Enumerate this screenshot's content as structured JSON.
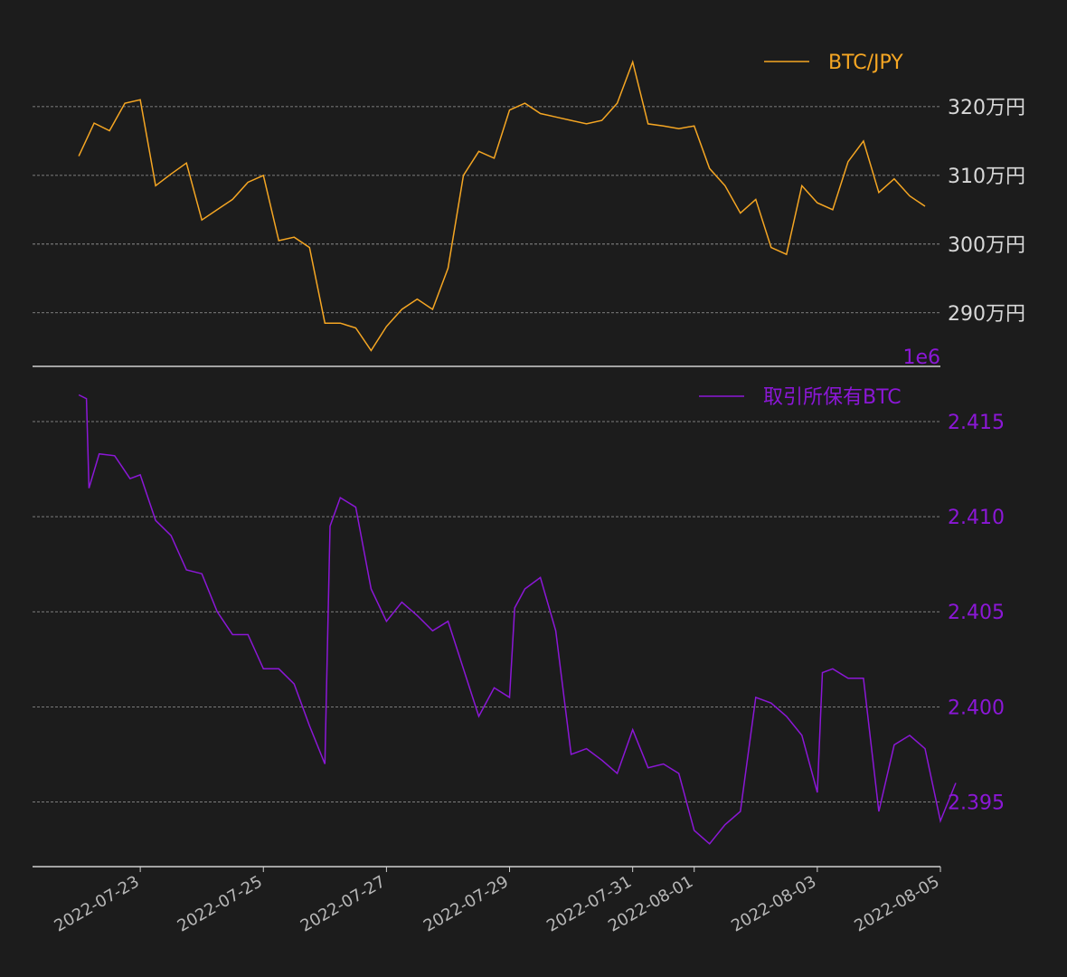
{
  "colors": {
    "background": "#1c1c1c",
    "price": "#f5a623",
    "holdings": "#8b17d6",
    "grid": "#9a9a9a",
    "axis": "#d0d0d0",
    "xtick": "#b8b8b8",
    "price_tick": "#d8d8d8"
  },
  "chart_data": [
    {
      "type": "line",
      "name": "top-panel",
      "legend": "BTC/JPY",
      "legend_position": "top-right",
      "grid": true,
      "y_unit_suffix": "万円",
      "ylim": [
        2822000,
        3296000
      ],
      "yticks": [
        2900000,
        3000000,
        3100000,
        3200000
      ],
      "ytick_labels": [
        "290万円",
        "300万円",
        "310万円",
        "320万円"
      ],
      "xlim": [
        "2022-07-21T06:00",
        "2022-08-05T00:00"
      ],
      "series": [
        {
          "name": "BTC/JPY",
          "points": [
            [
              "2022-07-22T00:00",
              3128000
            ],
            [
              "2022-07-22T06:00",
              3176000
            ],
            [
              "2022-07-22T12:00",
              3165000
            ],
            [
              "2022-07-22T18:00",
              3205000
            ],
            [
              "2022-07-23T00:00",
              3210000
            ],
            [
              "2022-07-23T06:00",
              3085000
            ],
            [
              "2022-07-23T12:00",
              3102000
            ],
            [
              "2022-07-23T18:00",
              3118000
            ],
            [
              "2022-07-24T00:00",
              3035000
            ],
            [
              "2022-07-24T06:00",
              3050000
            ],
            [
              "2022-07-24T12:00",
              3065000
            ],
            [
              "2022-07-24T18:00",
              3090000
            ],
            [
              "2022-07-25T00:00",
              3100000
            ],
            [
              "2022-07-25T06:00",
              3005000
            ],
            [
              "2022-07-25T12:00",
              3010000
            ],
            [
              "2022-07-25T18:00",
              2995000
            ],
            [
              "2022-07-26T00:00",
              2885000
            ],
            [
              "2022-07-26T06:00",
              2885000
            ],
            [
              "2022-07-26T12:00",
              2878000
            ],
            [
              "2022-07-26T18:00",
              2845000
            ],
            [
              "2022-07-27T00:00",
              2880000
            ],
            [
              "2022-07-27T06:00",
              2905000
            ],
            [
              "2022-07-27T12:00",
              2920000
            ],
            [
              "2022-07-27T18:00",
              2905000
            ],
            [
              "2022-07-28T00:00",
              2965000
            ],
            [
              "2022-07-28T06:00",
              3100000
            ],
            [
              "2022-07-28T12:00",
              3135000
            ],
            [
              "2022-07-28T18:00",
              3125000
            ],
            [
              "2022-07-29T00:00",
              3195000
            ],
            [
              "2022-07-29T06:00",
              3205000
            ],
            [
              "2022-07-29T12:00",
              3190000
            ],
            [
              "2022-07-29T18:00",
              3185000
            ],
            [
              "2022-07-30T00:00",
              3180000
            ],
            [
              "2022-07-30T06:00",
              3175000
            ],
            [
              "2022-07-30T12:00",
              3180000
            ],
            [
              "2022-07-30T18:00",
              3205000
            ],
            [
              "2022-07-31T00:00",
              3265000
            ],
            [
              "2022-07-31T06:00",
              3175000
            ],
            [
              "2022-07-31T12:00",
              3172000
            ],
            [
              "2022-07-31T18:00",
              3168000
            ],
            [
              "2022-08-01T00:00",
              3172000
            ],
            [
              "2022-08-01T06:00",
              3110000
            ],
            [
              "2022-08-01T12:00",
              3085000
            ],
            [
              "2022-08-01T18:00",
              3045000
            ],
            [
              "2022-08-02T00:00",
              3065000
            ],
            [
              "2022-08-02T06:00",
              2995000
            ],
            [
              "2022-08-02T12:00",
              2985000
            ],
            [
              "2022-08-02T18:00",
              3085000
            ],
            [
              "2022-08-03T00:00",
              3060000
            ],
            [
              "2022-08-03T06:00",
              3050000
            ],
            [
              "2022-08-03T12:00",
              3120000
            ],
            [
              "2022-08-03T18:00",
              3150000
            ],
            [
              "2022-08-04T00:00",
              3075000
            ],
            [
              "2022-08-04T06:00",
              3095000
            ],
            [
              "2022-08-04T12:00",
              3070000
            ],
            [
              "2022-08-04T18:00",
              3055000
            ]
          ]
        }
      ]
    },
    {
      "type": "line",
      "name": "bottom-panel",
      "legend": "取引所保有BTC",
      "legend_position": "top-right",
      "grid": true,
      "offset_label": "1e6",
      "ylim": [
        2.3916,
        2.4179
      ],
      "yticks": [
        2.395,
        2.4,
        2.405,
        2.41,
        2.415
      ],
      "ytick_labels": [
        "2.395",
        "2.400",
        "2.405",
        "2.410",
        "2.415"
      ],
      "xlim": [
        "2022-07-21T06:00",
        "2022-08-05T00:00"
      ],
      "xticks": [
        "2022-07-23",
        "2022-07-25",
        "2022-07-27",
        "2022-07-29",
        "2022-07-31",
        "2022-08-01",
        "2022-08-03",
        "2022-08-05"
      ],
      "series": [
        {
          "name": "取引所保有BTC",
          "points": [
            [
              "2022-07-22T00:00",
              2.4164
            ],
            [
              "2022-07-22T03:00",
              2.4162
            ],
            [
              "2022-07-22T04:00",
              2.4115
            ],
            [
              "2022-07-22T08:00",
              2.4133
            ],
            [
              "2022-07-22T14:00",
              2.4132
            ],
            [
              "2022-07-22T20:00",
              2.412
            ],
            [
              "2022-07-23T00:00",
              2.4122
            ],
            [
              "2022-07-23T06:00",
              2.4098
            ],
            [
              "2022-07-23T12:00",
              2.409
            ],
            [
              "2022-07-23T18:00",
              2.4072
            ],
            [
              "2022-07-24T00:00",
              2.407
            ],
            [
              "2022-07-24T06:00",
              2.405
            ],
            [
              "2022-07-24T12:00",
              2.4038
            ],
            [
              "2022-07-24T18:00",
              2.4038
            ],
            [
              "2022-07-25T00:00",
              2.402
            ],
            [
              "2022-07-25T06:00",
              2.402
            ],
            [
              "2022-07-25T12:00",
              2.4012
            ],
            [
              "2022-07-25T18:00",
              2.399
            ],
            [
              "2022-07-26T00:00",
              2.397
            ],
            [
              "2022-07-26T02:00",
              2.4095
            ],
            [
              "2022-07-26T06:00",
              2.411
            ],
            [
              "2022-07-26T12:00",
              2.4105
            ],
            [
              "2022-07-26T18:00",
              2.4062
            ],
            [
              "2022-07-27T00:00",
              2.4045
            ],
            [
              "2022-07-27T06:00",
              2.4055
            ],
            [
              "2022-07-27T12:00",
              2.4048
            ],
            [
              "2022-07-27T18:00",
              2.404
            ],
            [
              "2022-07-28T00:00",
              2.4045
            ],
            [
              "2022-07-28T06:00",
              2.402
            ],
            [
              "2022-07-28T12:00",
              2.3995
            ],
            [
              "2022-07-28T18:00",
              2.401
            ],
            [
              "2022-07-29T00:00",
              2.4005
            ],
            [
              "2022-07-29T02:00",
              2.4052
            ],
            [
              "2022-07-29T06:00",
              2.4062
            ],
            [
              "2022-07-29T12:00",
              2.4068
            ],
            [
              "2022-07-29T18:00",
              2.404
            ],
            [
              "2022-07-30T00:00",
              2.3975
            ],
            [
              "2022-07-30T06:00",
              2.3978
            ],
            [
              "2022-07-30T12:00",
              2.3972
            ],
            [
              "2022-07-30T18:00",
              2.3965
            ],
            [
              "2022-07-31T00:00",
              2.3988
            ],
            [
              "2022-07-31T06:00",
              2.3968
            ],
            [
              "2022-07-31T12:00",
              2.397
            ],
            [
              "2022-07-31T18:00",
              2.3965
            ],
            [
              "2022-08-01T00:00",
              2.3935
            ],
            [
              "2022-08-01T06:00",
              2.3928
            ],
            [
              "2022-08-01T12:00",
              2.3938
            ],
            [
              "2022-08-01T18:00",
              2.3945
            ],
            [
              "2022-08-02T00:00",
              2.4005
            ],
            [
              "2022-08-02T06:00",
              2.4002
            ],
            [
              "2022-08-02T12:00",
              2.3995
            ],
            [
              "2022-08-02T18:00",
              2.3985
            ],
            [
              "2022-08-03T00:00",
              2.3955
            ],
            [
              "2022-08-03T02:00",
              2.4018
            ],
            [
              "2022-08-03T06:00",
              2.402
            ],
            [
              "2022-08-03T12:00",
              2.4015
            ],
            [
              "2022-08-03T18:00",
              2.4015
            ],
            [
              "2022-08-04T00:00",
              2.3945
            ],
            [
              "2022-08-04T06:00",
              2.398
            ],
            [
              "2022-08-04T12:00",
              2.3985
            ],
            [
              "2022-08-04T18:00",
              2.3978
            ],
            [
              "2022-08-05T00:00",
              2.394
            ],
            [
              "2022-08-05T06:00",
              2.396
            ]
          ]
        }
      ]
    }
  ]
}
